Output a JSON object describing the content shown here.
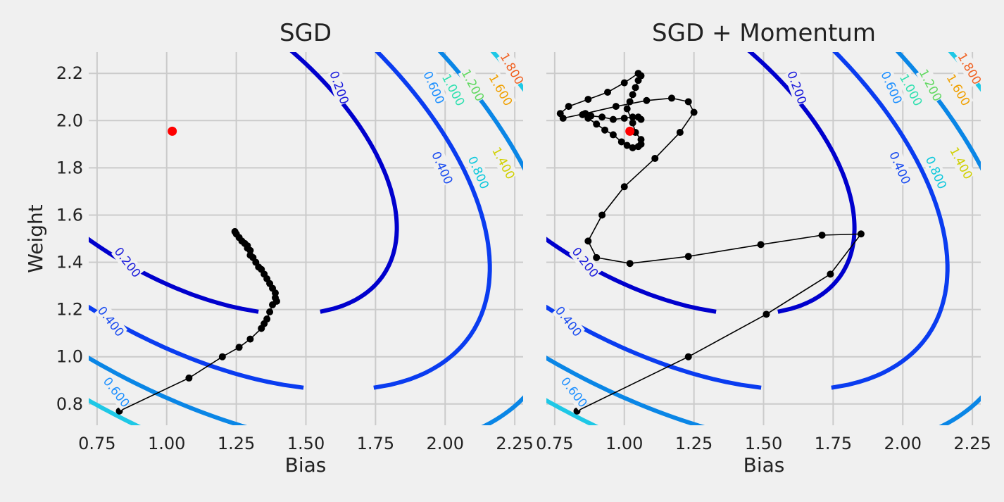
{
  "chart_data": [
    {
      "type": "line",
      "title": "SGD",
      "xlabel": "Bias",
      "ylabel": "Weight",
      "xlim": [
        0.72,
        2.28
      ],
      "ylim": [
        0.71,
        2.29
      ],
      "xticks": [
        "0.75",
        "1.00",
        "1.25",
        "1.50",
        "1.75",
        "2.00",
        "2.25"
      ],
      "yticks": [
        "0.8",
        "1.0",
        "1.2",
        "1.4",
        "1.6",
        "1.8",
        "2.0",
        "2.2"
      ],
      "grid": true,
      "contour_levels": [
        "0.200",
        "0.400",
        "0.600",
        "0.800",
        "1.000",
        "1.200",
        "1.400",
        "1.600",
        "1.800"
      ],
      "target_point": {
        "x": 1.02,
        "y": 1.955
      },
      "path": {
        "x": [
          0.83,
          1.08,
          1.2,
          1.26,
          1.3,
          1.34,
          1.35,
          1.36,
          1.37,
          1.38,
          1.39,
          1.395,
          1.39,
          1.38,
          1.37,
          1.36,
          1.35,
          1.34,
          1.33,
          1.32,
          1.31,
          1.3,
          1.3,
          1.29,
          1.29,
          1.28,
          1.27,
          1.26,
          1.25,
          1.245
        ],
        "y": [
          0.77,
          0.91,
          1.0,
          1.04,
          1.075,
          1.12,
          1.14,
          1.16,
          1.19,
          1.22,
          1.25,
          1.235,
          1.27,
          1.29,
          1.31,
          1.33,
          1.35,
          1.37,
          1.38,
          1.4,
          1.42,
          1.43,
          1.45,
          1.46,
          1.47,
          1.48,
          1.49,
          1.505,
          1.52,
          1.53
        ]
      }
    },
    {
      "type": "line",
      "title": "SGD + Momentum",
      "xlabel": "Bias",
      "ylabel": "",
      "xlim": [
        0.72,
        2.28
      ],
      "ylim": [
        0.71,
        2.29
      ],
      "xticks": [
        "0.75",
        "1.00",
        "1.25",
        "1.50",
        "1.75",
        "2.00",
        "2.25"
      ],
      "yticks": [],
      "grid": true,
      "contour_levels": [
        "0.200",
        "0.400",
        "0.600",
        "0.800",
        "1.000",
        "1.200",
        "1.400",
        "1.600",
        "1.800"
      ],
      "target_point": {
        "x": 1.02,
        "y": 1.955
      },
      "path": {
        "x": [
          0.83,
          1.23,
          1.51,
          1.74,
          1.85,
          1.71,
          1.49,
          1.23,
          1.02,
          0.9,
          0.87,
          0.92,
          1.0,
          1.11,
          1.2,
          1.25,
          1.23,
          1.17,
          1.08,
          0.97,
          0.86,
          0.78,
          0.77,
          0.8,
          0.87,
          0.94,
          1.0,
          1.05,
          1.06,
          1.05,
          1.04,
          1.03,
          1.02,
          1.01,
          1.03,
          1.04,
          1.06,
          1.06,
          1.05,
          1.03,
          1.01,
          0.99,
          0.96,
          0.93,
          0.9,
          0.87,
          0.85,
          0.88,
          0.92,
          0.96,
          1.0,
          1.03,
          1.05,
          1.06
        ],
        "y": [
          0.77,
          1.0,
          1.18,
          1.35,
          1.52,
          1.515,
          1.475,
          1.425,
          1.395,
          1.42,
          1.49,
          1.6,
          1.72,
          1.84,
          1.95,
          2.035,
          2.08,
          2.095,
          2.085,
          2.06,
          2.03,
          2.01,
          2.03,
          2.06,
          2.09,
          2.12,
          2.16,
          2.2,
          2.19,
          2.17,
          2.14,
          2.11,
          2.08,
          2.05,
          1.99,
          1.95,
          1.92,
          1.9,
          1.89,
          1.885,
          1.895,
          1.91,
          1.94,
          1.96,
          1.985,
          2.01,
          2.025,
          2.02,
          2.015,
          2.005,
          2.01,
          2.015,
          2.015,
          2.005
        ]
      }
    }
  ]
}
